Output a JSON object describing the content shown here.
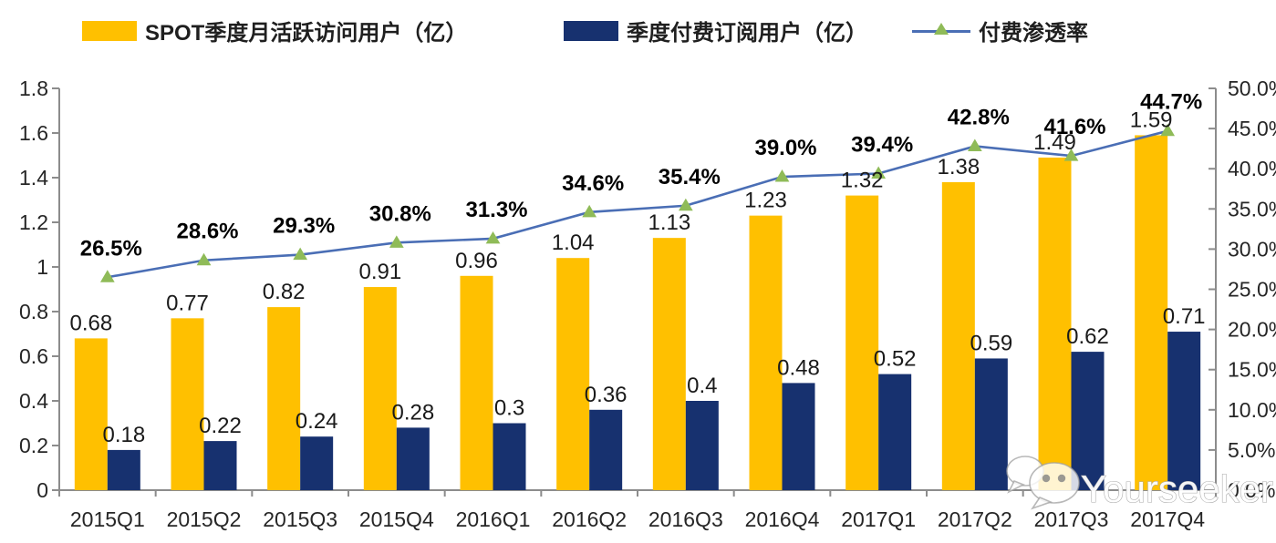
{
  "colors": {
    "mau_bar": "#FFC000",
    "subs_bar": "#17316F",
    "line": "#4A6EB5",
    "marker": "#8FBB58",
    "axis": "#8C8C8C",
    "tick_text": "#262626",
    "value_text": "#1a1a1a",
    "pct_text": "#000000"
  },
  "chart_data": {
    "type": "combo-bar-line",
    "title": "",
    "categories": [
      "2015Q1",
      "2015Q2",
      "2015Q3",
      "2015Q4",
      "2016Q1",
      "2016Q2",
      "2016Q3",
      "2016Q4",
      "2017Q1",
      "2017Q2",
      "2017Q3",
      "2017Q4"
    ],
    "series": [
      {
        "name": "SPOT季度月活跃访问用户（亿）",
        "type": "bar",
        "axis": "left",
        "values": [
          0.68,
          0.77,
          0.82,
          0.91,
          0.96,
          1.04,
          1.13,
          1.23,
          1.32,
          1.38,
          1.49,
          1.59
        ],
        "labels": [
          "0.68",
          "0.77",
          "0.82",
          "0.91",
          "0.96",
          "1.04",
          "1.13",
          "1.23",
          "1.32",
          "1.38",
          "1.49",
          "1.59"
        ]
      },
      {
        "name": "季度付费订阅用户（亿）",
        "type": "bar",
        "axis": "left",
        "values": [
          0.18,
          0.22,
          0.24,
          0.28,
          0.3,
          0.36,
          0.4,
          0.48,
          0.52,
          0.59,
          0.62,
          0.71
        ],
        "labels": [
          "0.18",
          "0.22",
          "0.24",
          "0.28",
          "0.3",
          "0.36",
          "0.4",
          "0.48",
          "0.52",
          "0.59",
          "0.62",
          "0.71"
        ]
      },
      {
        "name": "付费渗透率",
        "type": "line",
        "axis": "right",
        "values": [
          26.5,
          28.6,
          29.3,
          30.8,
          31.3,
          34.6,
          35.4,
          39.0,
          39.4,
          42.8,
          41.6,
          44.7
        ],
        "labels": [
          "26.5%",
          "28.6%",
          "29.3%",
          "30.8%",
          "31.3%",
          "34.6%",
          "35.4%",
          "39.0%",
          "39.4%",
          "42.8%",
          "41.6%",
          "44.7%"
        ]
      }
    ],
    "left_axis": {
      "min": 0,
      "max": 1.8,
      "step": 0.2,
      "ticks": [
        "0",
        "0.2",
        "0.4",
        "0.6",
        "0.8",
        "1",
        "1.2",
        "1.4",
        "1.6",
        "1.8"
      ]
    },
    "right_axis": {
      "min": 0,
      "max": 50,
      "step": 5,
      "ticks": [
        "0.0%",
        "5.0%",
        "10.0%",
        "15.0%",
        "20.0%",
        "25.0%",
        "30.0%",
        "35.0%",
        "40.0%",
        "45.0%",
        "50.0%"
      ]
    },
    "grid": false,
    "legend_position": "top"
  },
  "watermark": {
    "icon": "wechat-icon",
    "text": "Yourseeker"
  }
}
